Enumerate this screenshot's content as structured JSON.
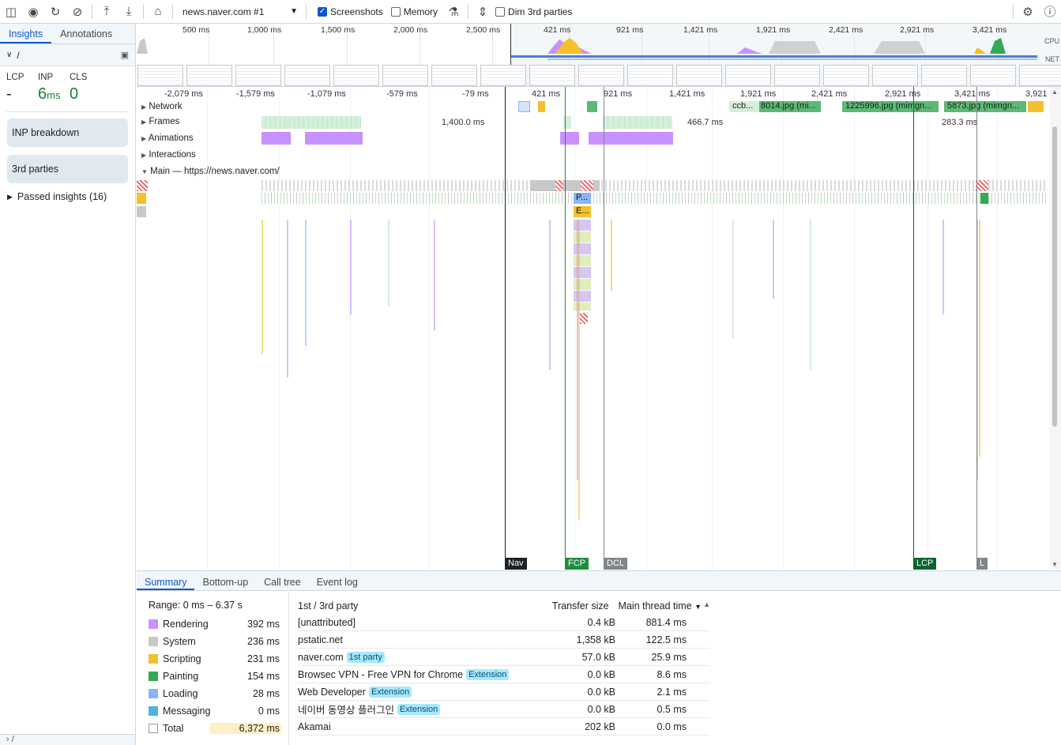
{
  "toolbar": {
    "url_select": "news.naver.com #1",
    "screenshots_label": "Screenshots",
    "memory_label": "Memory",
    "dim_label": "Dim 3rd parties",
    "screenshots_checked": true,
    "memory_checked": false,
    "dim_checked": false
  },
  "sidebar": {
    "tabs": [
      {
        "label": "Insights",
        "active": true
      },
      {
        "label": "Annotations",
        "active": false
      }
    ],
    "route": "/",
    "metrics": [
      {
        "label": "LCP",
        "value": "-",
        "unit": ""
      },
      {
        "label": "INP",
        "value": "6",
        "unit": "ms"
      },
      {
        "label": "CLS",
        "value": "0",
        "unit": ""
      }
    ],
    "cards": [
      "INP breakdown",
      "3rd parties"
    ],
    "passed": "Passed insights (16)",
    "bottom_route": "/"
  },
  "overview": {
    "ticks_left": [
      "500 ms",
      "1,000 ms",
      "1,500 ms",
      "2,000 ms",
      "2,500 ms"
    ],
    "ticks_right": [
      "421 ms",
      "921 ms",
      "1,421 ms",
      "1,921 ms",
      "2,421 ms",
      "2,921 ms",
      "3,421 ms"
    ],
    "cpu_label": "CPU",
    "net_label": "NET"
  },
  "flame": {
    "ticks": [
      "-2,079 ms",
      "-1,579 ms",
      "-1,079 ms",
      "-579 ms",
      "-79 ms",
      "421 ms",
      "921 ms",
      "1,421 ms",
      "1,921 ms",
      "2,421 ms",
      "2,921 ms",
      "3,421 ms",
      "3,921"
    ],
    "tracks": [
      "Network",
      "Frames",
      "Animations",
      "Interactions",
      "Main — https://news.naver.com/"
    ],
    "frame_labels": [
      "1,400.0 ms",
      "466.7 ms",
      "283.3 ms"
    ],
    "net_labels": [
      "ccb...",
      "8014.jpg (mi...",
      "1225996.jpg (mimgn...",
      "5873.jpg (mimgn..."
    ],
    "main_labels": [
      "P...",
      "E..."
    ],
    "markers": [
      {
        "label": "Nav",
        "color": "#202124"
      },
      {
        "label": "FCP",
        "color": "#1e8e3e"
      },
      {
        "label": "DCL",
        "color": "#80868b"
      },
      {
        "label": "LCP",
        "color": "#0d652d"
      },
      {
        "label": "L",
        "color": "#80868b"
      }
    ]
  },
  "bottom": {
    "tabs": [
      {
        "label": "Summary",
        "active": true
      },
      {
        "label": "Bottom-up",
        "active": false
      },
      {
        "label": "Call tree",
        "active": false
      },
      {
        "label": "Event log",
        "active": false
      }
    ],
    "range": "Range: 0 ms – 6.37 s",
    "categories": [
      {
        "name": "Rendering",
        "value": "392 ms",
        "color": "#c792ff"
      },
      {
        "name": "System",
        "value": "236 ms",
        "color": "#c8c8c8"
      },
      {
        "name": "Scripting",
        "value": "231 ms",
        "color": "#f4c02b"
      },
      {
        "name": "Painting",
        "value": "154 ms",
        "color": "#34a853"
      },
      {
        "name": "Loading",
        "value": "28 ms",
        "color": "#8ab4f8"
      },
      {
        "name": "Messaging",
        "value": "0 ms",
        "color": "#4bb6d9"
      },
      {
        "name": "Total",
        "value": "6,372 ms",
        "color": "#ffffff"
      }
    ],
    "table": {
      "headers": [
        "1st / 3rd party",
        "Transfer size",
        "Main thread time"
      ],
      "rows": [
        {
          "name": "[unattributed]",
          "badge": "",
          "size": "0.4 kB",
          "time": "881.4 ms"
        },
        {
          "name": "pstatic.net",
          "badge": "",
          "size": "1,358 kB",
          "time": "122.5 ms"
        },
        {
          "name": "naver.com",
          "badge": "1st party",
          "size": "57.0 kB",
          "time": "25.9 ms"
        },
        {
          "name": "Browsec VPN - Free VPN for Chrome",
          "badge": "Extension",
          "size": "0.0 kB",
          "time": "8.6 ms"
        },
        {
          "name": "Web Developer",
          "badge": "Extension",
          "size": "0.0 kB",
          "time": "2.1 ms"
        },
        {
          "name": "네이버 동영상 플러그인",
          "badge": "Extension",
          "size": "0.0 kB",
          "time": "0.5 ms"
        },
        {
          "name": "Akamai",
          "badge": "",
          "size": "202 kB",
          "time": "0.0 ms"
        }
      ]
    }
  }
}
